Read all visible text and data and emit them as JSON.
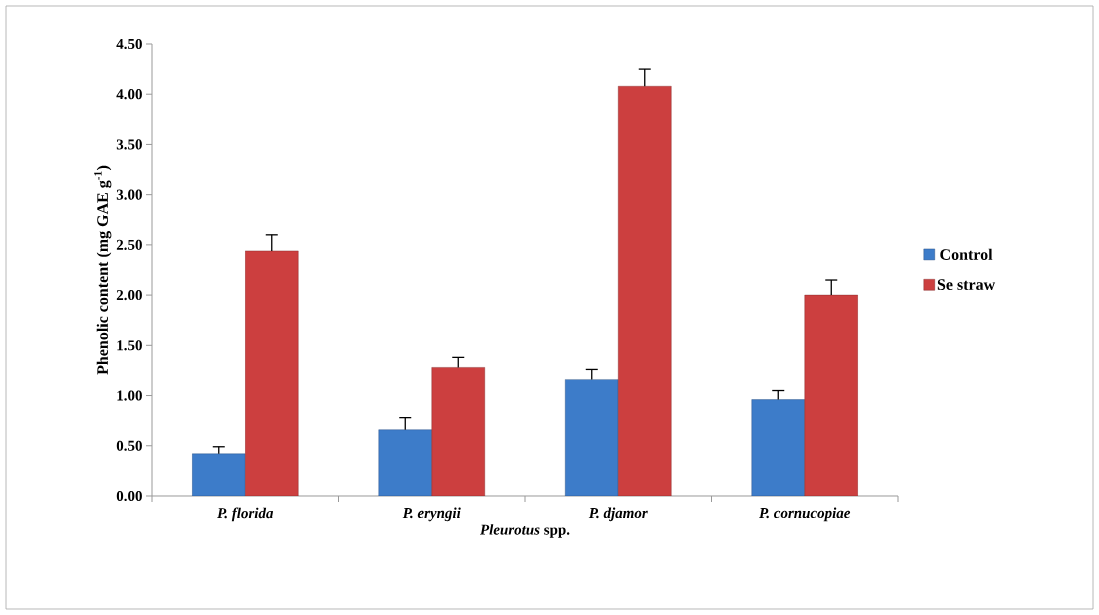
{
  "chart_data": {
    "type": "bar",
    "xlabel": "*Pleurotus* spp.",
    "ylabel": "Phenolic content (mg GAE g$^{-1}$)",
    "categories": [
      "P. florida",
      "P. eryngii",
      "P. djamor",
      "P. cornucopiae"
    ],
    "series": [
      {
        "name": "Control",
        "color": "#3d7cc9",
        "values": [
          0.42,
          0.66,
          1.16,
          0.96
        ],
        "errors": [
          0.07,
          0.12,
          0.1,
          0.09
        ]
      },
      {
        "name": "Se straw",
        "color": "#cc3f3f",
        "values": [
          2.44,
          1.28,
          4.08,
          2.0
        ],
        "errors": [
          0.16,
          0.1,
          0.17,
          0.15
        ]
      }
    ],
    "ylim": [
      0,
      4.5
    ],
    "yticks": [
      {
        "value": 0,
        "label": "0.00"
      },
      {
        "value": 0.5,
        "label": "0.50"
      },
      {
        "value": 1,
        "label": "1.00"
      },
      {
        "value": 1.5,
        "label": "1.50"
      },
      {
        "value": 2,
        "label": "2.00"
      },
      {
        "value": 2.5,
        "label": "2.50"
      },
      {
        "value": 3,
        "label": "3.00"
      },
      {
        "value": 3.5,
        "label": "3.50"
      },
      {
        "value": 4,
        "label": "4.00"
      },
      {
        "value": 4.5,
        "label": "4.50"
      }
    ],
    "grid": false,
    "legend": "right"
  }
}
